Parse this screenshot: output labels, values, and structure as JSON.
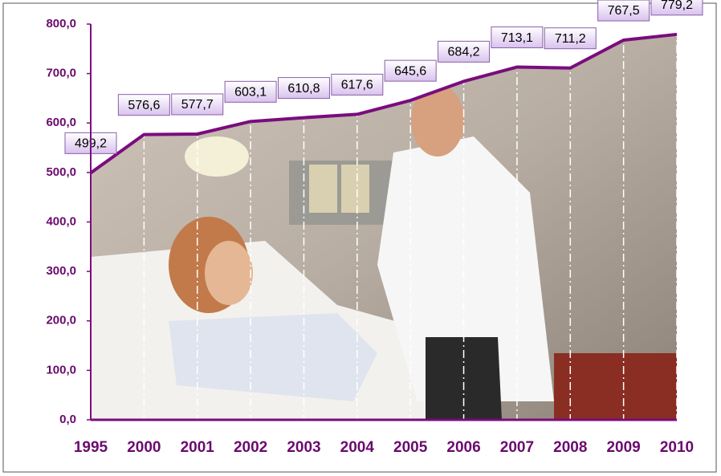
{
  "chart_data": {
    "type": "line",
    "categories": [
      "1995",
      "2000",
      "2001",
      "2002",
      "2003",
      "2004",
      "2005",
      "2006",
      "2007",
      "2008",
      "2009",
      "2010"
    ],
    "values": [
      499.2,
      576.6,
      577.7,
      603.1,
      610.8,
      617.6,
      645.6,
      684.2,
      713.1,
      711.2,
      767.5,
      779.2
    ],
    "value_labels": [
      "499,2",
      "576,6",
      "577,7",
      "603,1",
      "610,8",
      "617,6",
      "645,6",
      "684,2",
      "713,1",
      "711,2",
      "767,5",
      "779,2"
    ],
    "color": "#7a0c7e",
    "ylim": [
      0,
      800
    ],
    "yticks": [
      {
        "value": 0,
        "label": "0,0"
      },
      {
        "value": 100,
        "label": "100,0"
      },
      {
        "value": 200,
        "label": "200,0"
      },
      {
        "value": 300,
        "label": "300,0"
      },
      {
        "value": 400,
        "label": "400,0"
      },
      {
        "value": 500,
        "label": "500,0"
      },
      {
        "value": 600,
        "label": "600,0"
      },
      {
        "value": 700,
        "label": "700,0"
      },
      {
        "value": 800,
        "label": "800,0"
      }
    ]
  }
}
